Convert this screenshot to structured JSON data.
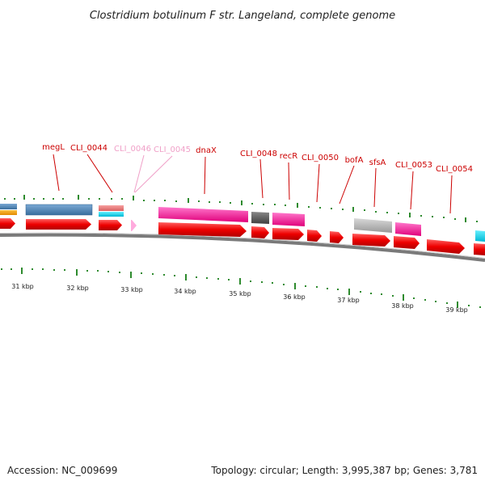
{
  "title": "Clostridium botulinum F str. Langeland, complete genome",
  "accession": "Accession: NC_009699",
  "summary": "Topology: circular; Length: 3,995,387 bp; Genes: 3,781",
  "kbp_labels": [
    "31 kbp",
    "32 kbp",
    "33 kbp",
    "34 kbp",
    "35 kbp",
    "36 kbp",
    "37 kbp",
    "38 kbp",
    "39 kbp"
  ],
  "gene_labels": [
    {
      "name": "megL",
      "color": "#cc0000"
    },
    {
      "name": "CLI_0044",
      "color": "#cc0000"
    },
    {
      "name": "CLI_0046",
      "color": "#f0a0c8"
    },
    {
      "name": "CLI_0045",
      "color": "#f0a0c8"
    },
    {
      "name": "dnaX",
      "color": "#cc0000"
    },
    {
      "name": "CLI_0048",
      "color": "#cc0000"
    },
    {
      "name": "recR",
      "color": "#cc0000"
    },
    {
      "name": "CLI_0050",
      "color": "#cc0000"
    },
    {
      "name": "bofA",
      "color": "#cc0000"
    },
    {
      "name": "sfsA",
      "color": "#cc0000"
    },
    {
      "name": "CLI_0053",
      "color": "#cc0000"
    },
    {
      "name": "CLI_0054",
      "color": "#cc0000"
    }
  ],
  "colors": {
    "cds": "#ff0000",
    "tick": "#2e8b2e",
    "backbone": "#808080",
    "steelblue": "#4682b4",
    "magenta": "#ff33aa",
    "gray": "#b0b0b0",
    "darkgray": "#555555",
    "salmon": "#f08080",
    "cyan": "#00e5ff",
    "orange": "#ffa500",
    "pink": "#ffaadd"
  }
}
